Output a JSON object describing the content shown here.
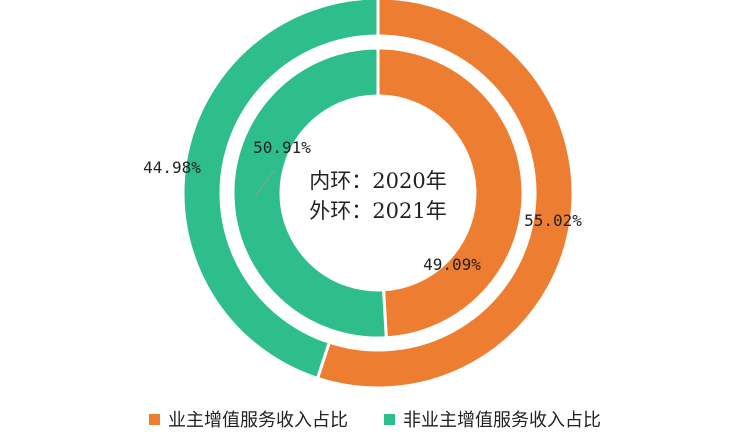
{
  "chart_data": {
    "type": "pie",
    "subtype": "donut",
    "categories": [
      "业主增值服务收入占比",
      "非业主增值服务收入占比"
    ],
    "colors": [
      "#ED7D31",
      "#2DBE8C"
    ],
    "rings": [
      {
        "ring": "inner",
        "name": "内环：2020年",
        "values": [
          49.09,
          50.91
        ],
        "labels": [
          "49.09%",
          "50.91%"
        ]
      },
      {
        "ring": "outer",
        "name": "外环：2021年",
        "values": [
          55.02,
          44.98
        ],
        "labels": [
          "55.02%",
          "44.98%"
        ]
      }
    ],
    "center_text": [
      "内环：2020年",
      "外环：2021年"
    ],
    "legend_position": "bottom"
  }
}
